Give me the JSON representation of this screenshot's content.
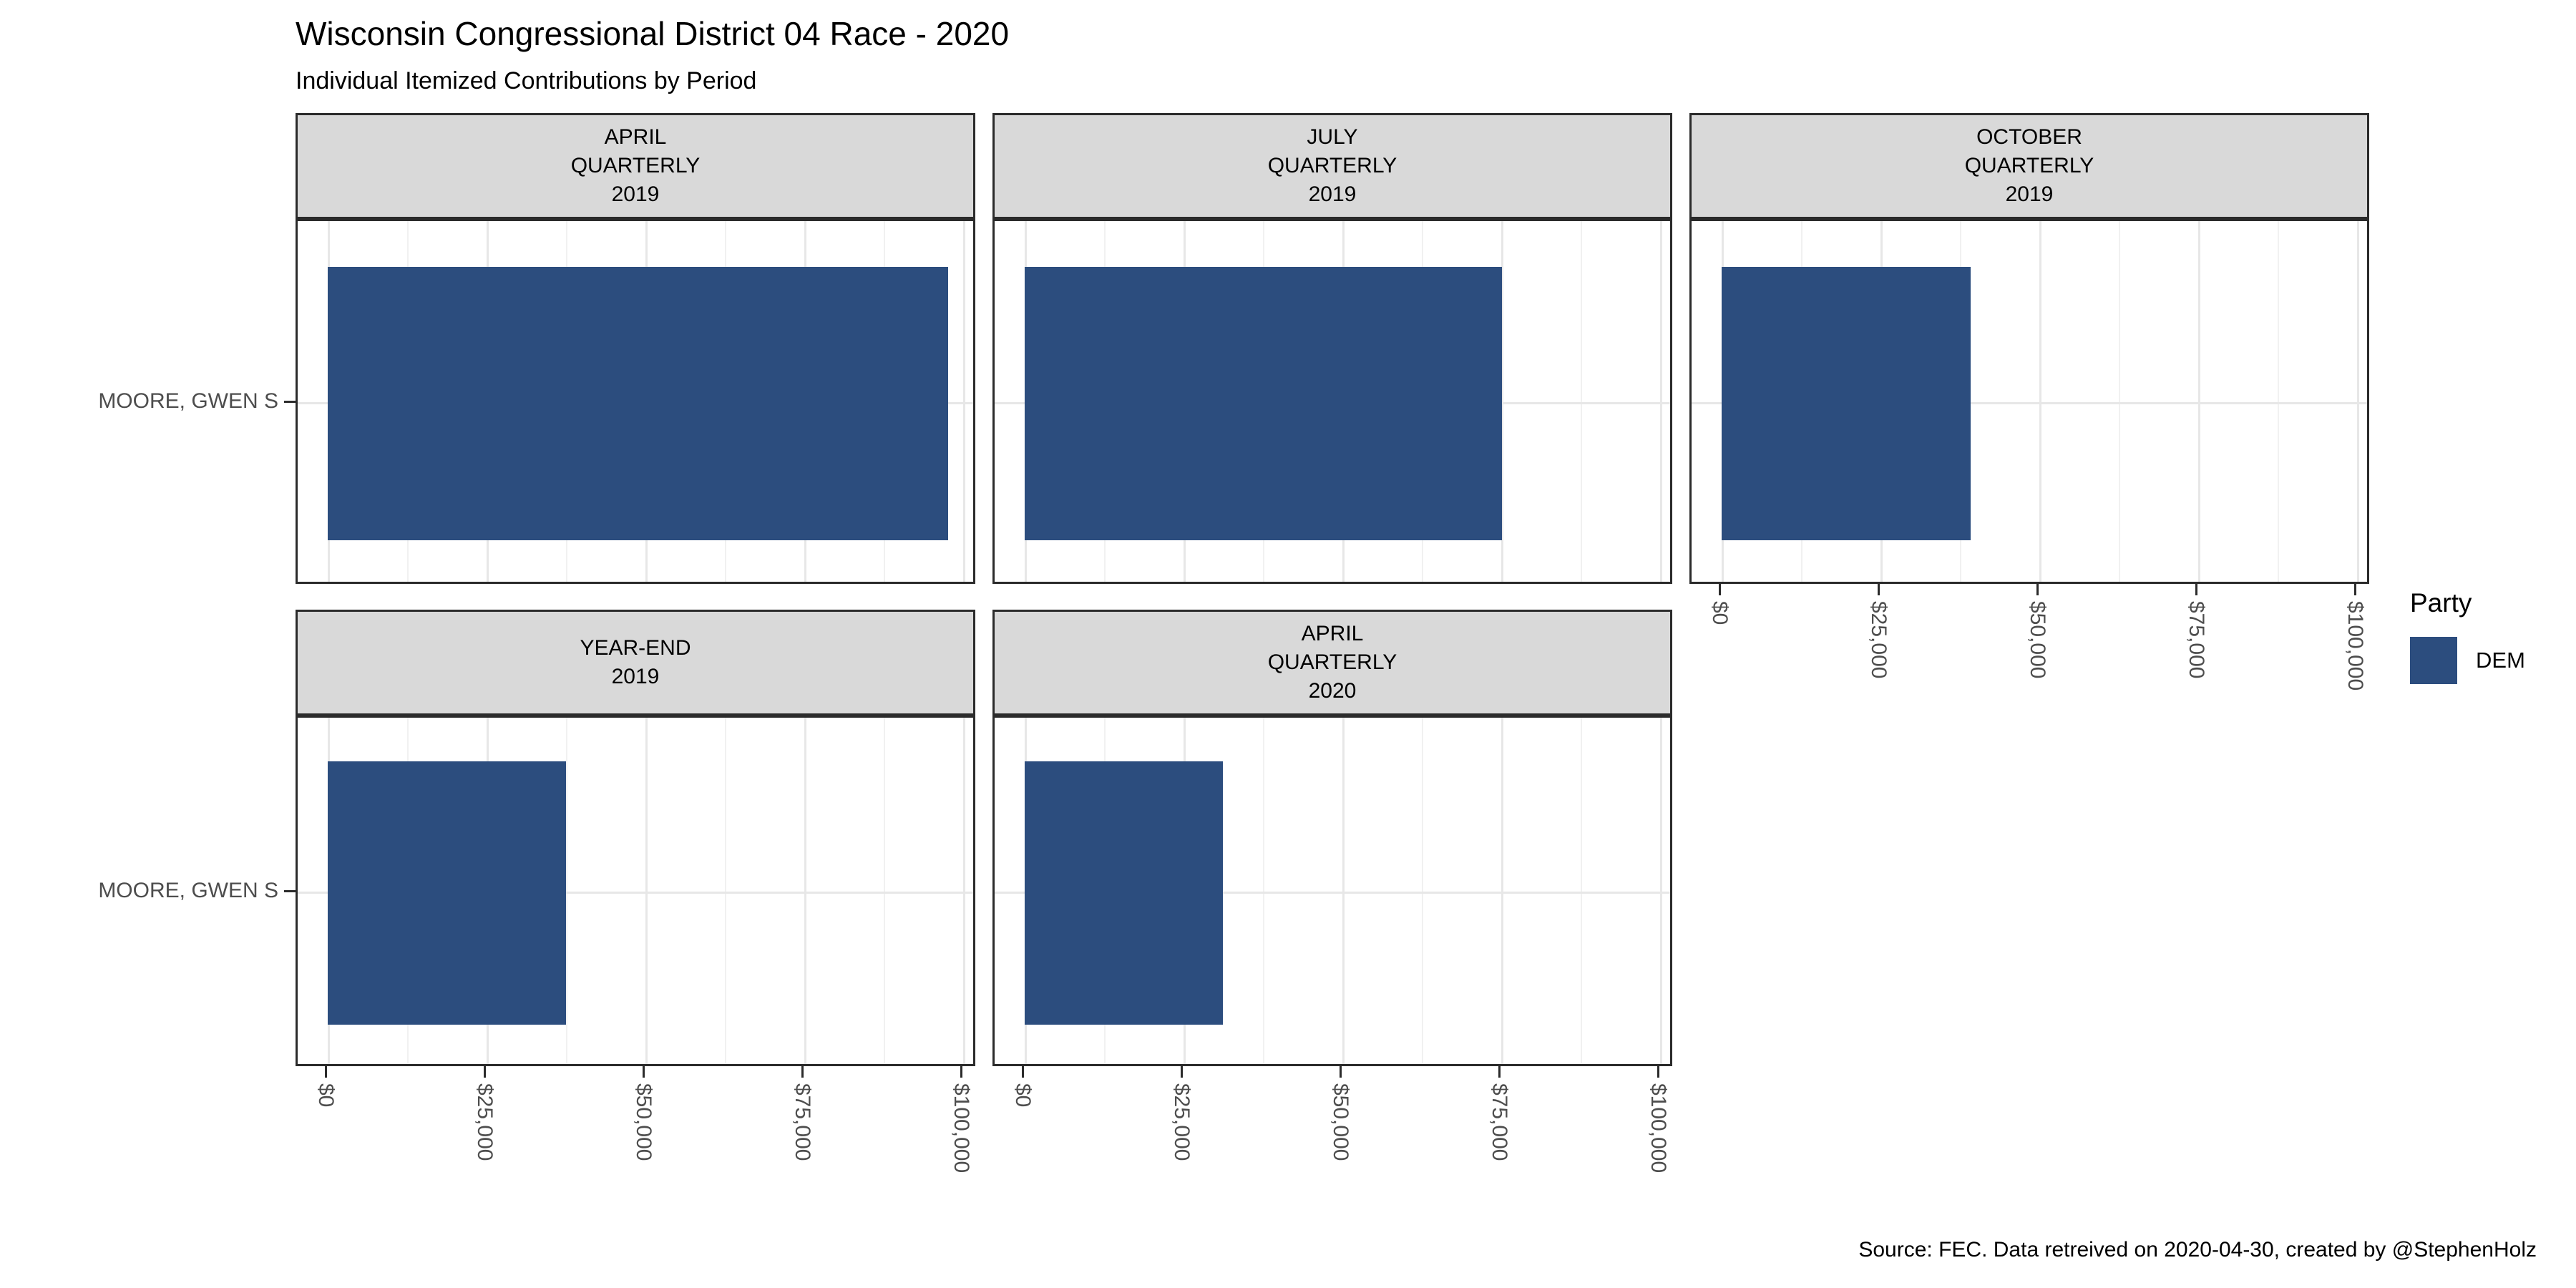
{
  "header": {
    "title": "Wisconsin Congressional District 04 Race - 2020",
    "subtitle": "Individual Itemized Contributions by Period"
  },
  "caption": "Source: FEC. Data retreived on 2020-04-30, created by @StephenHolz",
  "legend": {
    "title": "Party",
    "entries": [
      {
        "label": "DEM",
        "color": "#2C4D7E"
      }
    ]
  },
  "colors": {
    "bar": "#2C4D7E",
    "strip_background": "#D9D9D9",
    "panel_border": "#2B2B2B",
    "grid_major": "#E7E7E7",
    "grid_minor": "#F1F1F1",
    "axis_text": "#4D4D4D"
  },
  "chart_data": {
    "type": "bar",
    "orientation": "horizontal",
    "title": "Wisconsin Congressional District 04 Race - 2020",
    "subtitle": "Individual Itemized Contributions by Period",
    "candidate": "MOORE, GWEN S",
    "party": "DEM",
    "xlim": [
      0,
      100000
    ],
    "x_tick_values": [
      0,
      25000,
      50000,
      75000,
      100000
    ],
    "x_tick_labels": [
      "$0",
      "$25,000",
      "$50,000",
      "$75,000",
      "$100,000"
    ],
    "x_minor_values": [
      12500,
      37500,
      62500,
      87500
    ],
    "grid": true,
    "legend_position": "right",
    "facets": [
      {
        "label_lines": [
          "APRIL",
          "QUARTERLY",
          "2019"
        ],
        "category": "MOORE, GWEN S",
        "value": 97600
      },
      {
        "label_lines": [
          "JULY",
          "QUARTERLY",
          "2019"
        ],
        "category": "MOORE, GWEN S",
        "value": 75100
      },
      {
        "label_lines": [
          "OCTOBER",
          "QUARTERLY",
          "2019"
        ],
        "category": "MOORE, GWEN S",
        "value": 39200
      },
      {
        "label_lines": [
          "YEAR-END",
          "2019"
        ],
        "category": "MOORE, GWEN S",
        "value": 37500
      },
      {
        "label_lines": [
          "APRIL",
          "QUARTERLY",
          "2020"
        ],
        "category": "MOORE, GWEN S",
        "value": 31200
      }
    ]
  }
}
